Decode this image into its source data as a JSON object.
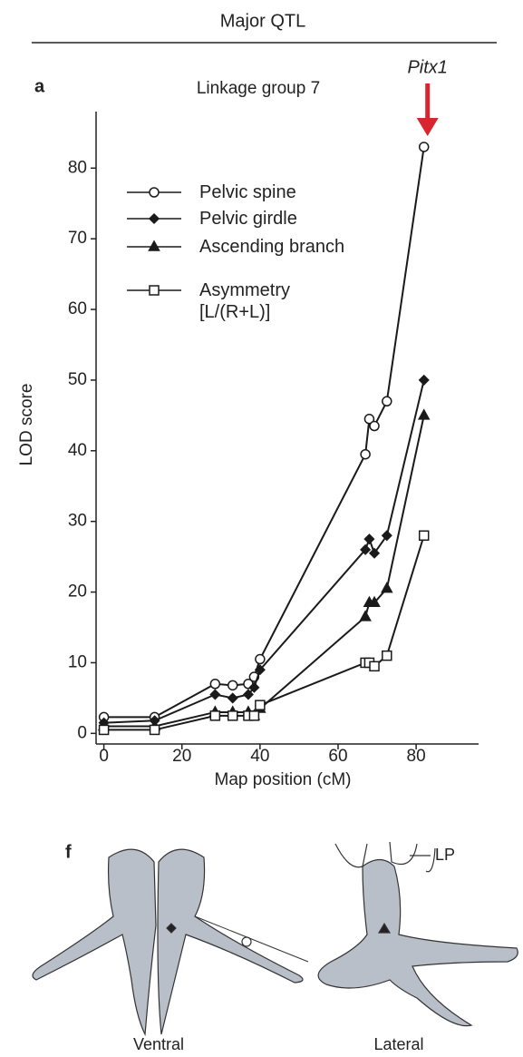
{
  "header": "Major QTL",
  "chart_data": {
    "type": "line",
    "panel_label": "a",
    "title": "Linkage group 7",
    "x_label": "Map position (cM)",
    "y_label": "LOD score",
    "annotations": [
      {
        "text": "Pitx1",
        "color": "#d7262f"
      }
    ],
    "xlim": [
      -2,
      96
    ],
    "ylim": [
      -1.5,
      88
    ],
    "xticks": [
      0,
      20,
      40,
      60,
      80
    ],
    "yticks": [
      0,
      10,
      20,
      30,
      40,
      50,
      60,
      70,
      80
    ],
    "grid": false,
    "series": [
      {
        "name": "Pelvic spine",
        "color": "#1a1a1a",
        "marker": "circle-open",
        "x": [
          0,
          13,
          28.5,
          33,
          37,
          38.5,
          40,
          67,
          68,
          69.3,
          72.5,
          82
        ],
        "values": [
          2.3,
          2.3,
          7,
          6.8,
          7,
          8,
          10.5,
          39.5,
          44.5,
          43.5,
          47,
          83
        ]
      },
      {
        "name": "Pelvic girdle",
        "color": "#1a1a1a",
        "marker": "diamond",
        "x": [
          0,
          13,
          28.5,
          33,
          37,
          38.5,
          40,
          67,
          68,
          69.3,
          72.5,
          82
        ],
        "values": [
          1.5,
          1.8,
          5.5,
          5,
          5.5,
          6.5,
          9,
          26,
          27.5,
          25.5,
          28,
          50
        ]
      },
      {
        "name": "Ascending branch",
        "color": "#1a1a1a",
        "marker": "triangle",
        "x": [
          0,
          13,
          28.5,
          33,
          37,
          38.5,
          40,
          67,
          68,
          69.3,
          72.5,
          82
        ],
        "values": [
          1,
          1,
          3,
          3,
          3,
          2.5,
          3.5,
          16.5,
          18.5,
          18.5,
          20.5,
          45
        ]
      },
      {
        "name": "Asymmetry [L/(R+L)]",
        "color": "#1a1a1a",
        "marker": "square-open",
        "x": [
          0,
          13,
          28.5,
          33,
          37,
          38.5,
          40,
          67,
          68,
          69.3,
          72.5,
          82
        ],
        "values": [
          0.5,
          0.5,
          2.5,
          2.5,
          2.5,
          2.5,
          4,
          10,
          10,
          9.5,
          11,
          28
        ]
      }
    ]
  },
  "panel_f": {
    "label": "f",
    "annotation": "LP",
    "captions": [
      "Ventral",
      "Lateral"
    ]
  }
}
